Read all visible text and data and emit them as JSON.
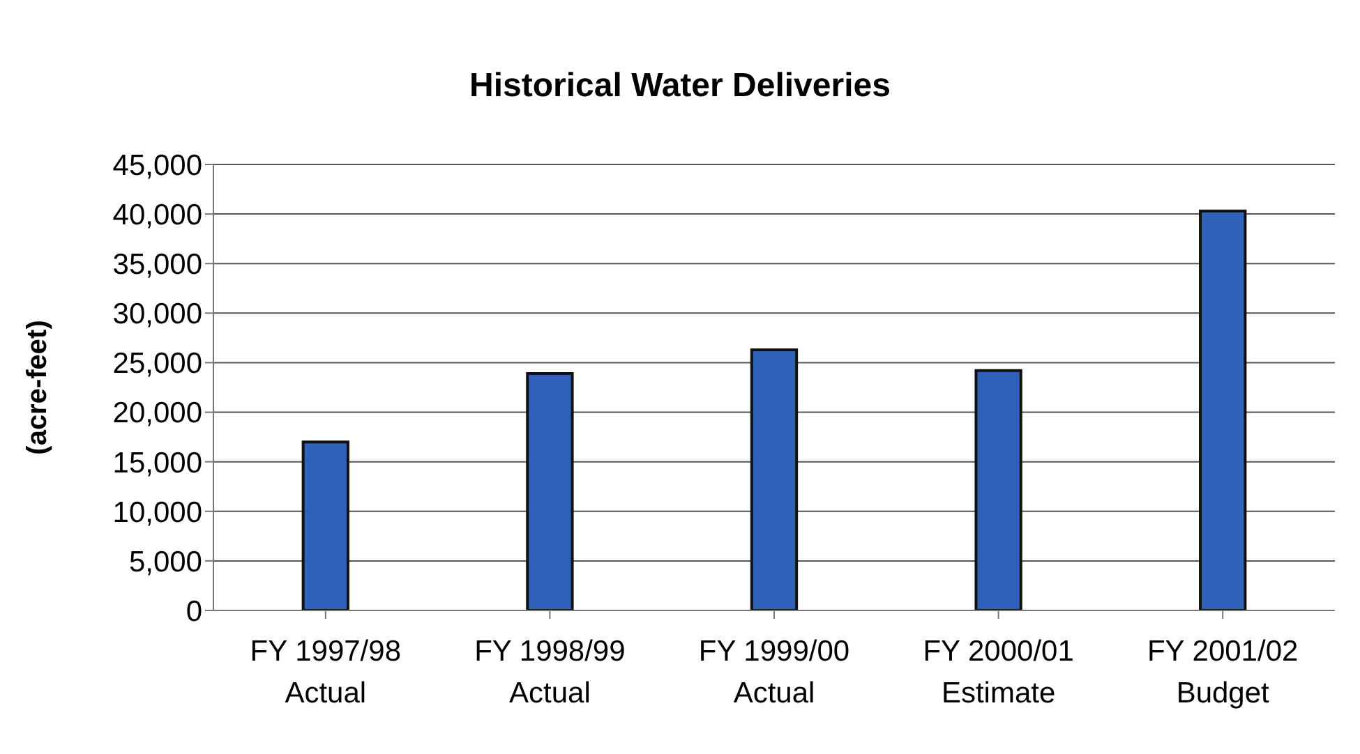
{
  "chart_data": {
    "type": "bar",
    "title": "Historical Water Deliveries",
    "ylabel": "(acre-feet)",
    "categories": [
      "FY 1997/98\nActual",
      "FY 1998/99\nActual",
      "FY 1999/00\nActual",
      "FY 2000/01\nEstimate",
      "FY 2001/02\nBudget"
    ],
    "values": [
      17000,
      23900,
      26300,
      24200,
      40300
    ],
    "color": "#2f62b8",
    "ylim": [
      0,
      45000
    ],
    "yticks": [
      {
        "value": 0,
        "label": "0"
      },
      {
        "value": 5000,
        "label": "5,000"
      },
      {
        "value": 10000,
        "label": "10,000"
      },
      {
        "value": 15000,
        "label": "15,000"
      },
      {
        "value": 20000,
        "label": "20,000"
      },
      {
        "value": 25000,
        "label": "25,000"
      },
      {
        "value": 30000,
        "label": "30,000"
      },
      {
        "value": 35000,
        "label": "35,000"
      },
      {
        "value": 40000,
        "label": "40,000"
      },
      {
        "value": 45000,
        "label": "45,000"
      }
    ],
    "grid": "y"
  }
}
